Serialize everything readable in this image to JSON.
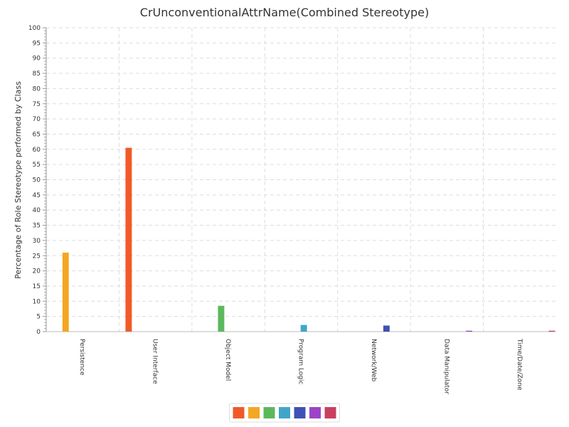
{
  "chart_data": {
    "type": "bar",
    "title": "CrUnconventionalAttrName(Combined Stereotype)",
    "xlabel": "",
    "ylabel": "Percentage of Role Stereotype performed by Class",
    "ylim": [
      0,
      100
    ],
    "ytick_step": 5,
    "grid": true,
    "legend_position": "bottom",
    "categories": [
      "Persistence",
      "User Interface",
      "Object Model",
      "Program Logic",
      "Network/Web",
      "Data Manipulator",
      "Time/Date/Zone"
    ],
    "series": [
      {
        "color": "#f05a28",
        "values": [
          0,
          60.5,
          0,
          0,
          0,
          0,
          0
        ]
      },
      {
        "color": "#f5a623",
        "values": [
          26,
          0,
          0,
          0,
          0,
          0,
          0
        ]
      },
      {
        "color": "#5cb85c",
        "values": [
          0,
          0,
          8.5,
          0,
          0,
          0,
          0
        ]
      },
      {
        "color": "#41a5c9",
        "values": [
          0,
          0,
          0,
          2.2,
          0,
          0,
          0
        ]
      },
      {
        "color": "#3f51b5",
        "values": [
          0,
          0,
          0,
          0,
          2,
          0,
          0
        ]
      },
      {
        "color": "#9c44c9",
        "values": [
          0,
          0,
          0,
          0,
          0,
          0.3,
          0
        ]
      },
      {
        "color": "#c9405f",
        "values": [
          0,
          0,
          0,
          0,
          0,
          0,
          0.3
        ]
      }
    ]
  }
}
